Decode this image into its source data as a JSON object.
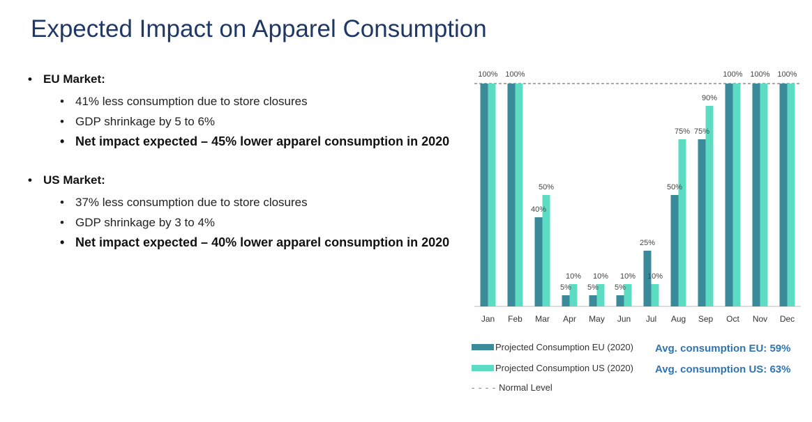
{
  "title": "Expected Impact on Apparel Consumption",
  "bullet_char": "•",
  "markets": [
    {
      "heading": "EU Market:",
      "points": [
        {
          "text": "41% less consumption due to store closures",
          "bold": false
        },
        {
          "text": "GDP shrinkage by 5 to 6%",
          "bold": false
        },
        {
          "text": "Net impact expected – 45% lower apparel consumption in 2020",
          "bold": true
        }
      ]
    },
    {
      "heading": "US Market:",
      "points": [
        {
          "text": "37% less consumption due to store closures",
          "bold": false
        },
        {
          "text": "GDP shrinkage by 3 to 4%",
          "bold": false
        },
        {
          "text": "Net impact expected – 40% lower apparel consumption in 2020",
          "bold": true
        }
      ]
    }
  ],
  "chart_data": {
    "type": "bar",
    "categories": [
      "Jan",
      "Feb",
      "Mar",
      "Apr",
      "May",
      "Jun",
      "Jul",
      "Aug",
      "Sep",
      "Oct",
      "Nov",
      "Dec"
    ],
    "series": [
      {
        "name": "Projected Consumption EU (2020)",
        "color": "#3a8a99",
        "values": [
          100,
          100,
          40,
          5,
          5,
          5,
          25,
          50,
          75,
          100,
          100,
          100
        ],
        "labels": [
          "",
          "",
          "40%",
          "5%",
          "5%",
          "5%",
          "25%",
          "50%",
          "75%",
          "",
          "",
          ""
        ]
      },
      {
        "name": "Projected Consumption US (2020)",
        "color": "#5ddcc4",
        "values": [
          100,
          100,
          50,
          10,
          10,
          10,
          10,
          75,
          90,
          100,
          100,
          100
        ],
        "labels": [
          "",
          "",
          "50%",
          "10%",
          "10%",
          "10%",
          "10%",
          "75%",
          "90%",
          "",
          "",
          ""
        ]
      }
    ],
    "top_labels": [
      "100%",
      "100%",
      "",
      "",
      "",
      "",
      "",
      "",
      "",
      "100%",
      "100%",
      "100%"
    ],
    "reference_line": {
      "name": "Normal Level",
      "value": 100
    },
    "ylim": [
      0,
      100
    ],
    "title": "",
    "xlabel": "",
    "ylabel": ""
  },
  "legend": {
    "eu_label": "Projected Consumption EU (2020)",
    "us_label": "Projected Consumption US (2020)",
    "normal_label": "Normal Level",
    "normal_dash": "- - - -",
    "avg_eu": "Avg. consumption EU: 59%",
    "avg_us": "Avg. consumption US: 63%"
  },
  "colors": {
    "title": "#1f3864",
    "eu": "#3a8a99",
    "us": "#5ddcc4",
    "avg_text": "#2e74b5"
  }
}
